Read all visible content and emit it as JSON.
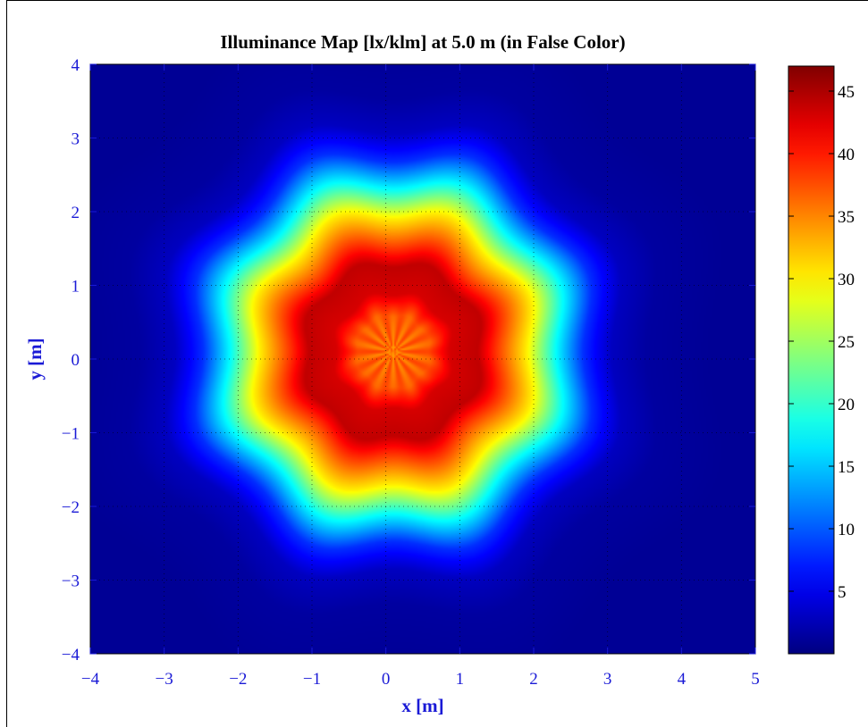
{
  "chart_data": {
    "type": "heatmap",
    "title": "Illuminance Map [lx/klm] at 5.0 m (in False Color)",
    "xlabel": "x [m]",
    "ylabel": "y [m]",
    "xlim": [
      -4,
      5
    ],
    "ylim": [
      -4,
      4
    ],
    "x_ticks": [
      "−4",
      "−3",
      "−2",
      "−1",
      "0",
      "1",
      "2",
      "3",
      "4",
      "5"
    ],
    "y_ticks": [
      "4",
      "3",
      "2",
      "1",
      "0",
      "−1",
      "−2",
      "−3",
      "−4"
    ],
    "x_tick_values": [
      -4,
      -3,
      -2,
      -1,
      0,
      1,
      2,
      3,
      4,
      5
    ],
    "y_tick_values": [
      4,
      3,
      2,
      1,
      0,
      -1,
      -2,
      -3,
      -4
    ],
    "grid": true,
    "colormap": "jet",
    "colorbar": {
      "range": [
        0,
        47
      ],
      "ticks": [
        "5",
        "10",
        "15",
        "20",
        "25",
        "30",
        "35",
        "40",
        "45"
      ],
      "tick_values": [
        5,
        10,
        15,
        20,
        25,
        30,
        35,
        40,
        45
      ]
    },
    "peak": {
      "x": 0.1,
      "y": 0.1,
      "value": 44
    },
    "center_value": 36,
    "radial_profile": [
      {
        "r": 0.0,
        "value": 36
      },
      {
        "r": 0.5,
        "value": 37
      },
      {
        "r": 0.8,
        "value": 43
      },
      {
        "r": 1.2,
        "value": 44
      },
      {
        "r": 1.5,
        "value": 38
      },
      {
        "r": 1.9,
        "value": 30
      },
      {
        "r": 2.3,
        "value": 18
      },
      {
        "r": 2.7,
        "value": 8
      },
      {
        "r": 3.1,
        "value": 3
      },
      {
        "r": 3.6,
        "value": 1.5
      },
      {
        "r": 4.5,
        "value": 1
      }
    ]
  },
  "colors": {
    "axis_text": "#1a1ad6",
    "background_low": "#2a14c2"
  }
}
